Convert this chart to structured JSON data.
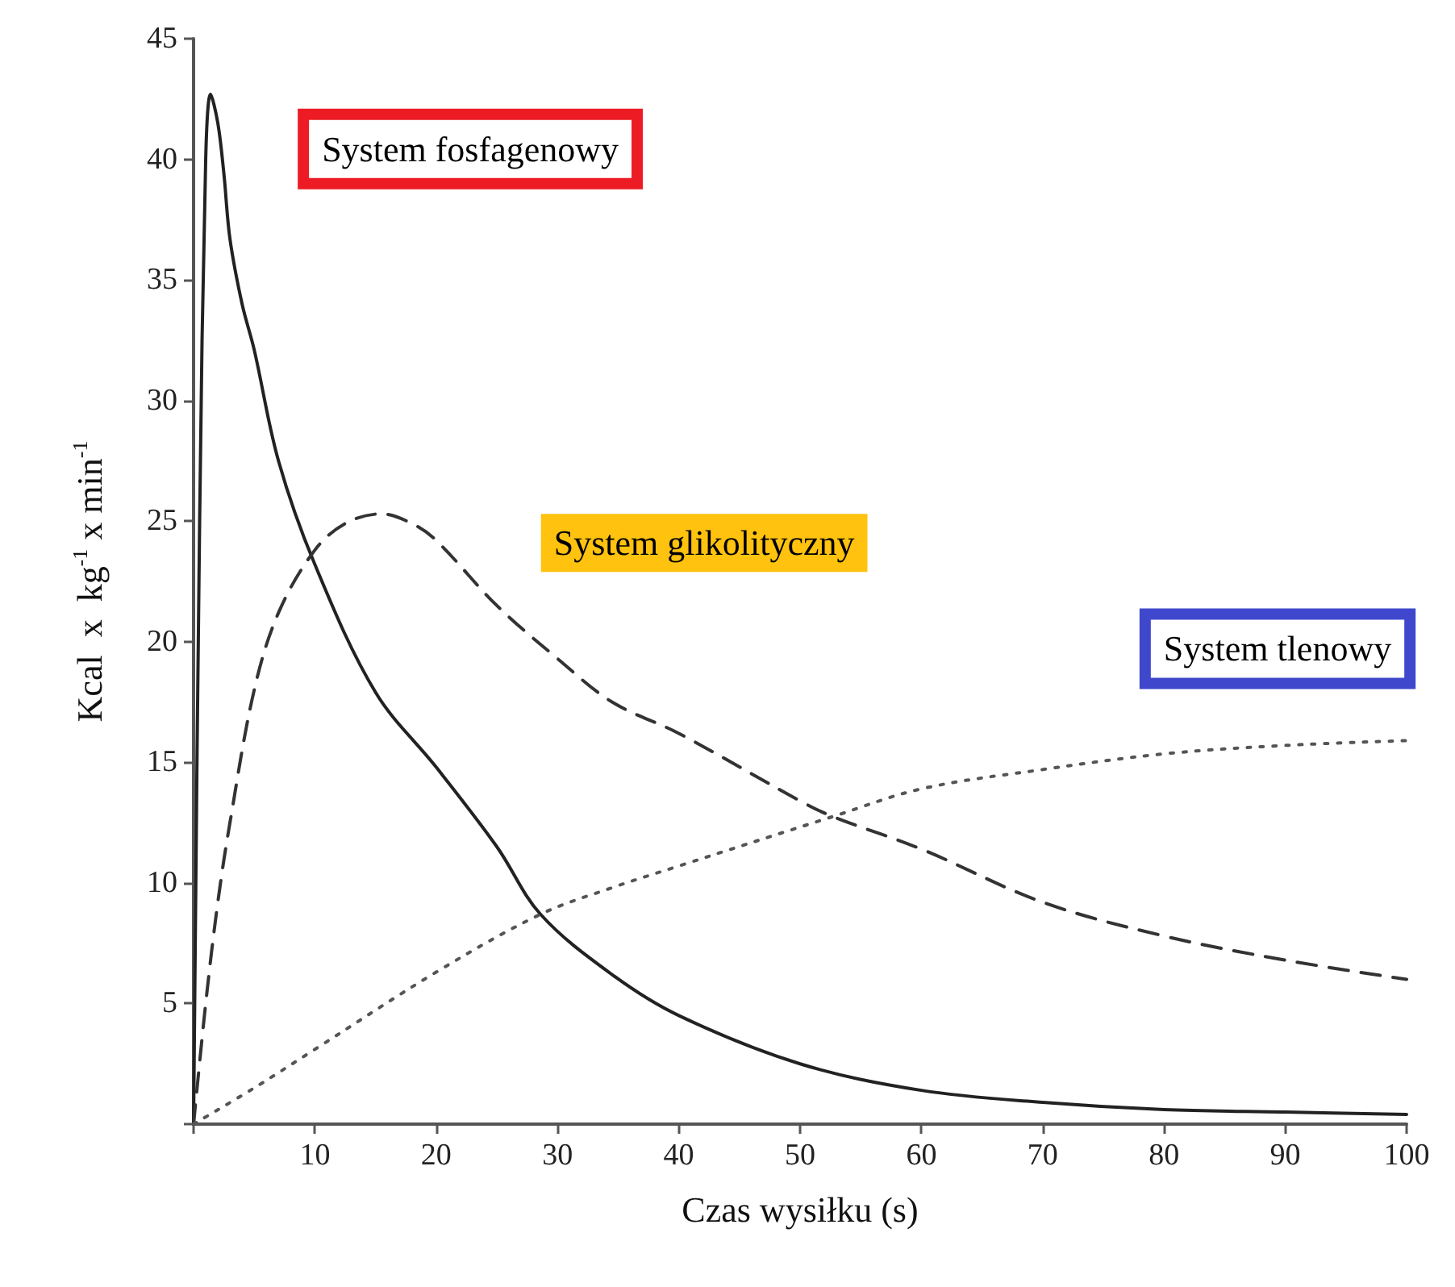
{
  "chart_data": {
    "type": "line",
    "xlabel": "Czas wysiłku (s)",
    "ylabel": "Kcal  x  kg$^{-1}$ x min$^{-1}$",
    "xlim": [
      0,
      100
    ],
    "ylim": [
      0,
      45
    ],
    "xticks": [
      {
        "value": 0,
        "label": null
      },
      10,
      20,
      30,
      40,
      50,
      60,
      70,
      80,
      90,
      100
    ],
    "yticks": [
      {
        "value": 0,
        "label": null
      },
      5,
      10,
      15,
      20,
      25,
      30,
      35,
      40,
      45
    ],
    "grid": false,
    "marker": "none",
    "series": [
      {
        "name": "System fosfagenowy",
        "color": "#222222",
        "line_style": "solid",
        "x": [
          0,
          0.5,
          1,
          1.4,
          2,
          2.5,
          3,
          4,
          5,
          7,
          10,
          15,
          20,
          25,
          28.6,
          34.5,
          40,
          50,
          60,
          70,
          80,
          90,
          100
        ],
        "values": [
          0,
          25,
          40,
          42.7,
          41.5,
          39.4,
          36.7,
          34,
          32.1,
          27.5,
          23.2,
          17.9,
          14.8,
          11.5,
          8.7,
          6.2,
          4.5,
          2.5,
          1.4,
          0.9,
          0.6,
          0.5,
          0.4
        ]
      },
      {
        "name": "System glikolityczny",
        "color": "#333333",
        "line_style": "dashed",
        "x": [
          0,
          1,
          2,
          3,
          5,
          7,
          10,
          12.5,
          15.5,
          18,
          20,
          25,
          30,
          34.5,
          40,
          50,
          52.7,
          60,
          70,
          80,
          90,
          100
        ],
        "values": [
          0,
          5,
          9.2,
          12.5,
          18,
          21.2,
          23.8,
          24.9,
          25.3,
          24.9,
          24.2,
          21.5,
          19.3,
          17.5,
          16.2,
          13.4,
          12.75,
          11.4,
          9.2,
          7.8,
          6.8,
          6
        ]
      },
      {
        "name": "System tlenowy",
        "color": "#555555",
        "line_style": "dotted",
        "x": [
          0,
          5,
          10,
          20,
          28.6,
          34.5,
          40,
          52.7,
          60,
          70,
          80,
          90,
          100
        ],
        "values": [
          0,
          1.5,
          3.1,
          6.3,
          8.7,
          9.8,
          10.7,
          12.75,
          13.9,
          14.7,
          15.35,
          15.7,
          15.9
        ]
      }
    ]
  }
}
